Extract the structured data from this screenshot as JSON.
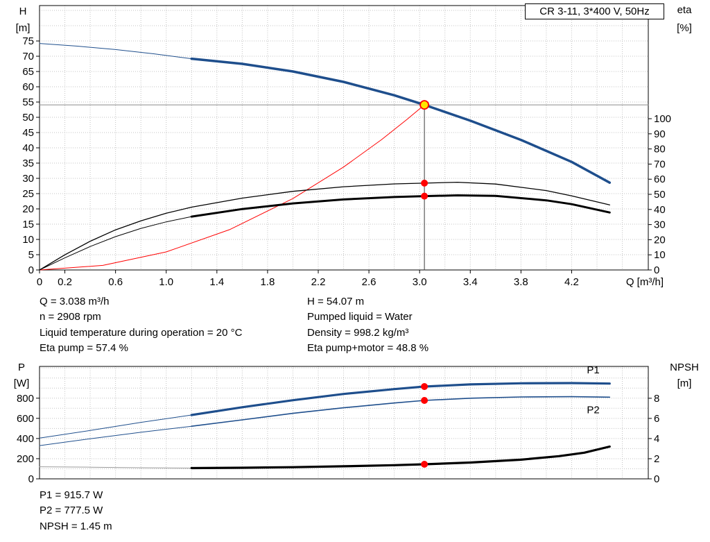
{
  "info_top_left": [
    "Q = 3.038 m³/h",
    "n = 2908 rpm",
    "Liquid temperature during operation = 20 °C",
    "Eta pump = 57.4 %"
  ],
  "info_top_right": [
    "H = 54.07 m",
    "Pumped liquid = Water",
    "Density = 998.2 kg/m³",
    "Eta pump+motor = 48.8 %"
  ],
  "info_bottom": [
    "P1 = 915.7 W",
    "P2 = 777.5 W",
    "NPSH = 1.45 m"
  ],
  "colors": {
    "curve_blue": "#1e4e8c",
    "curve_black": "#000000",
    "system_red": "#ff0000",
    "duty_yellow": "#ffe600",
    "dot_red": "#ff0000",
    "grid_gray": "#c3c3c3"
  },
  "chart_data": [
    {
      "id": "hq",
      "type": "line",
      "title": "CR 3-11, 3*400 V, 50Hz",
      "xlabel": "Q [m³/h]",
      "ylabel_left": [
        "H",
        "[m]"
      ],
      "ylabel_right": [
        "eta",
        "[%]"
      ],
      "xlim": [
        0,
        4.805
      ],
      "ylim_left": [
        0,
        86.6
      ],
      "ylim_right": [
        0,
        174.8
      ],
      "grid": {
        "x_step": 0.2,
        "y_step": 5,
        "color": "#c3c3c3"
      },
      "x_ticks": [
        [
          0,
          "0"
        ],
        [
          0.2,
          "0.2"
        ],
        [
          0.6,
          "0.6"
        ],
        [
          1,
          "1.0"
        ],
        [
          1.4,
          "1.4"
        ],
        [
          1.8,
          "1.8"
        ],
        [
          2.2,
          "2.2"
        ],
        [
          2.6,
          "2.6"
        ],
        [
          3,
          "3.0"
        ],
        [
          3.4,
          "3.4"
        ],
        [
          3.8,
          "3.8"
        ],
        [
          4.2,
          "4.2"
        ]
      ],
      "y_ticks_left": [
        [
          0,
          "0"
        ],
        [
          5,
          "5"
        ],
        [
          10,
          "10"
        ],
        [
          15,
          "15"
        ],
        [
          20,
          "20"
        ],
        [
          25,
          "25"
        ],
        [
          30,
          "30"
        ],
        [
          35,
          "35"
        ],
        [
          40,
          "40"
        ],
        [
          45,
          "45"
        ],
        [
          50,
          "50"
        ],
        [
          55,
          "55"
        ],
        [
          60,
          "60"
        ],
        [
          65,
          "65"
        ],
        [
          70,
          "70"
        ],
        [
          75,
          "75"
        ]
      ],
      "y_ticks_right": [
        [
          0,
          "0"
        ],
        [
          10,
          "10"
        ],
        [
          20,
          "20"
        ],
        [
          30,
          "30"
        ],
        [
          40,
          "40"
        ],
        [
          50,
          "50"
        ],
        [
          60,
          "60"
        ],
        [
          70,
          "70"
        ],
        [
          80,
          "80"
        ],
        [
          90,
          "90"
        ],
        [
          100,
          "100"
        ]
      ],
      "duty_point": {
        "q": 3.038,
        "h": 54.07,
        "eta_pump": 57.4,
        "eta_pump_motor": 48.8
      },
      "series": [
        {
          "name": "duty-crosshair-horizontal",
          "axis": "left",
          "color": "#8a8a8a",
          "width": 1,
          "points": [
            [
              0,
              54.07
            ],
            [
              4.805,
              54.07
            ]
          ]
        },
        {
          "name": "duty-crosshair-vertical",
          "axis": "left",
          "color": "#3a3a3a",
          "width": 1,
          "points": [
            [
              3.038,
              0
            ],
            [
              3.038,
              55.5
            ]
          ]
        },
        {
          "name": "system-curve",
          "axis": "left",
          "color": "#ff0000",
          "width": 1,
          "points": [
            [
              0,
              0
            ],
            [
              0.5,
              1.5
            ],
            [
              1,
              5.9
            ],
            [
              1.5,
              13.2
            ],
            [
              2,
              23.4
            ],
            [
              2.4,
              33.7
            ],
            [
              2.7,
              42.7
            ],
            [
              2.9,
              49.3
            ],
            [
              3.038,
              54.07
            ]
          ]
        },
        {
          "name": "eta-pump-curve",
          "axis": "right",
          "color": "#000000",
          "width": 1.3,
          "points": [
            [
              0,
              0
            ],
            [
              0.2,
              10
            ],
            [
              0.4,
              19
            ],
            [
              0.6,
              26.5
            ],
            [
              0.8,
              32.5
            ],
            [
              1,
              37.5
            ],
            [
              1.2,
              41.5
            ],
            [
              1.6,
              47.5
            ],
            [
              2,
              52
            ],
            [
              2.4,
              55
            ],
            [
              2.8,
              56.9
            ],
            [
              3.038,
              57.4
            ],
            [
              3.3,
              58
            ],
            [
              3.6,
              56.8
            ],
            [
              4,
              52.5
            ],
            [
              4.2,
              49
            ],
            [
              4.5,
              43
            ]
          ]
        },
        {
          "name": "eta-pump-motor-curve-ext",
          "axis": "right",
          "color": "#000000",
          "width": 1,
          "points": [
            [
              0,
              0
            ],
            [
              0.2,
              8
            ],
            [
              0.4,
              15.5
            ],
            [
              0.6,
              22
            ],
            [
              0.8,
              27.5
            ],
            [
              1,
              31.8
            ],
            [
              1.2,
              35.3
            ]
          ]
        },
        {
          "name": "eta-pump-motor-curve",
          "axis": "right",
          "color": "#000000",
          "width": 3,
          "points": [
            [
              1.2,
              35.3
            ],
            [
              1.6,
              40.3
            ],
            [
              2,
              44
            ],
            [
              2.4,
              46.6
            ],
            [
              2.8,
              48.2
            ],
            [
              3.038,
              48.8
            ],
            [
              3.3,
              49.3
            ],
            [
              3.6,
              49
            ],
            [
              4,
              46
            ],
            [
              4.2,
              43.5
            ],
            [
              4.5,
              38
            ]
          ]
        },
        {
          "name": "head-curve-ext",
          "axis": "left",
          "color": "#1e4e8c",
          "width": 1,
          "points": [
            [
              0,
              74.2
            ],
            [
              0.3,
              73.3
            ],
            [
              0.6,
              72.2
            ],
            [
              0.9,
              70.8
            ],
            [
              1.2,
              69.2
            ]
          ]
        },
        {
          "name": "head-curve",
          "axis": "left",
          "color": "#1e4e8c",
          "width": 3.5,
          "points": [
            [
              1.2,
              69.2
            ],
            [
              1.6,
              67.5
            ],
            [
              2,
              65
            ],
            [
              2.4,
              61.6
            ],
            [
              2.8,
              57.2
            ],
            [
              3.038,
              54.07
            ],
            [
              3.4,
              48.9
            ],
            [
              3.8,
              42.6
            ],
            [
              4.2,
              35.4
            ],
            [
              4.5,
              28.6
            ]
          ]
        }
      ],
      "markers": [
        {
          "name": "eta-pump-duty-dot",
          "axis": "right",
          "q": 3.038,
          "v": 57.4,
          "r": 5,
          "fill": "#ff0000"
        },
        {
          "name": "eta-pump-motor-duty-dot",
          "axis": "right",
          "q": 3.038,
          "v": 48.8,
          "r": 5,
          "fill": "#ff0000"
        },
        {
          "name": "duty-point-marker",
          "axis": "left",
          "q": 3.038,
          "v": 54.07,
          "r": 6,
          "fill": "#ffe600",
          "stroke": "#ff0000",
          "sw": 1.8
        }
      ],
      "point_labels": []
    },
    {
      "id": "power",
      "type": "line",
      "title": "",
      "xlabel": "",
      "ylabel_left": [
        "P",
        "[W]"
      ],
      "ylabel_right": [
        "NPSH",
        "[m]"
      ],
      "xlim": [
        0,
        4.805
      ],
      "ylim_left": [
        0,
        1115
      ],
      "ylim_right": [
        0,
        11.16
      ],
      "grid": {
        "x_step": 0.2,
        "y_step": 100,
        "color": "#c3c3c3"
      },
      "x_ticks": [],
      "y_ticks_left": [
        [
          0,
          "0"
        ],
        [
          200,
          "200"
        ],
        [
          400,
          "400"
        ],
        [
          600,
          "600"
        ],
        [
          800,
          "800"
        ]
      ],
      "y_ticks_right": [
        [
          0,
          "0"
        ],
        [
          2,
          "2"
        ],
        [
          4,
          "4"
        ],
        [
          6,
          "6"
        ],
        [
          8,
          "8"
        ]
      ],
      "duty_point": {
        "q": 3.038,
        "p1_w": 915.7,
        "p2_w": 777.5,
        "npsh_m": 1.45
      },
      "series": [
        {
          "name": "p1-curve-ext",
          "axis": "left",
          "color": "#1e4e8c",
          "width": 1,
          "points": [
            [
              0,
              405
            ],
            [
              0.4,
              480
            ],
            [
              0.8,
              560
            ],
            [
              1.2,
              633
            ]
          ]
        },
        {
          "name": "p2-curve-ext",
          "axis": "left",
          "color": "#1e4e8c",
          "width": 1,
          "points": [
            [
              0,
              330
            ],
            [
              0.4,
              398
            ],
            [
              0.8,
              462
            ],
            [
              1.2,
              522
            ]
          ]
        },
        {
          "name": "npsh-curve-ext",
          "axis": "right",
          "color": "#9a9a9a",
          "width": 1,
          "points": [
            [
              0,
              1.2
            ],
            [
              0.4,
              1.16
            ],
            [
              0.8,
              1.1
            ],
            [
              1.2,
              1.07
            ]
          ]
        },
        {
          "name": "p1-curve",
          "axis": "left",
          "color": "#1e4e8c",
          "width": 3.2,
          "points": [
            [
              1.2,
              633
            ],
            [
              1.6,
              710
            ],
            [
              2,
              780
            ],
            [
              2.4,
              842
            ],
            [
              2.8,
              890
            ],
            [
              3.038,
              915.7
            ],
            [
              3.4,
              937
            ],
            [
              3.8,
              948
            ],
            [
              4.2,
              950
            ],
            [
              4.5,
              945
            ]
          ]
        },
        {
          "name": "p2-curve",
          "axis": "left",
          "color": "#1e4e8c",
          "width": 1.6,
          "points": [
            [
              1.2,
              522
            ],
            [
              1.6,
              585
            ],
            [
              2,
              650
            ],
            [
              2.4,
              705
            ],
            [
              2.8,
              752
            ],
            [
              3.038,
              777.5
            ],
            [
              3.4,
              800
            ],
            [
              3.8,
              812
            ],
            [
              4.2,
              815
            ],
            [
              4.5,
              810
            ]
          ]
        },
        {
          "name": "npsh-curve",
          "axis": "right",
          "color": "#000000",
          "width": 3.2,
          "points": [
            [
              1.2,
              1.07
            ],
            [
              1.6,
              1.1
            ],
            [
              2,
              1.16
            ],
            [
              2.4,
              1.25
            ],
            [
              2.8,
              1.36
            ],
            [
              3.038,
              1.45
            ],
            [
              3.4,
              1.62
            ],
            [
              3.8,
              1.9
            ],
            [
              4.1,
              2.25
            ],
            [
              4.3,
              2.6
            ],
            [
              4.5,
              3.2
            ]
          ]
        }
      ],
      "markers": [
        {
          "name": "p1-duty-dot",
          "axis": "left",
          "q": 3.038,
          "v": 915.7,
          "r": 5,
          "fill": "#ff0000"
        },
        {
          "name": "p2-duty-dot",
          "axis": "left",
          "q": 3.038,
          "v": 777.5,
          "r": 5,
          "fill": "#ff0000"
        },
        {
          "name": "npsh-duty-dot",
          "axis": "right",
          "q": 3.038,
          "v": 1.45,
          "r": 5,
          "fill": "#ff0000"
        }
      ],
      "point_labels": [
        {
          "name": "p1-curve-label",
          "text": "P1",
          "axis": "left",
          "q": 4.32,
          "v": 1045,
          "color": "#1e4e8c"
        },
        {
          "name": "p2-curve-label",
          "text": "P2",
          "axis": "left",
          "q": 4.32,
          "v": 650,
          "color": "#1e4e8c"
        }
      ]
    }
  ]
}
